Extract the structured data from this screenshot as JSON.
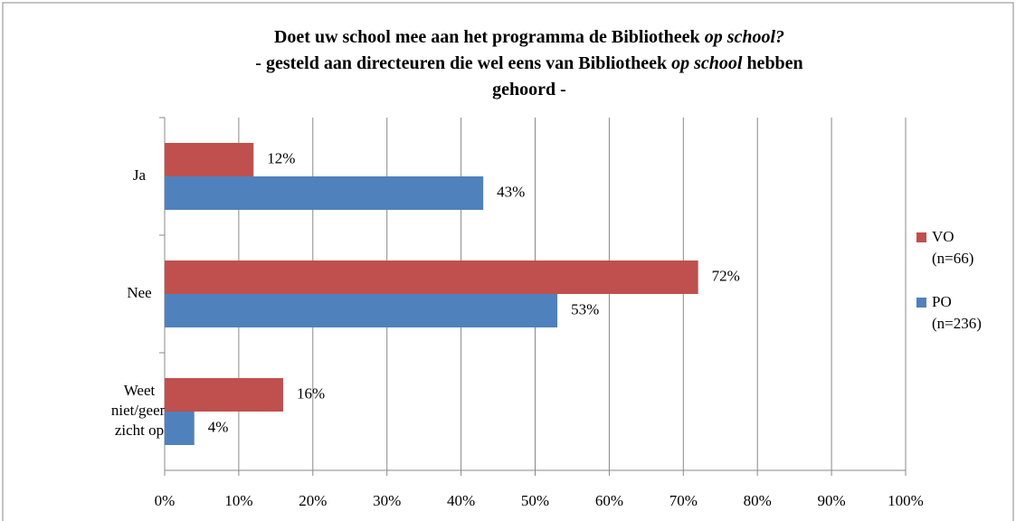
{
  "chart_data": {
    "type": "bar",
    "orientation": "horizontal",
    "title_lines": [
      [
        {
          "text": "Doet uw school mee aan het programma de Bibliotheek "
        },
        {
          "text": "op school?",
          "italic": true
        }
      ],
      [
        {
          "text": "- gesteld aan directeuren die wel eens van Bibliotheek "
        },
        {
          "text": "op school",
          "italic": true
        },
        {
          "text": " hebben"
        }
      ],
      [
        {
          "text": "gehoord -"
        }
      ]
    ],
    "categories": [
      [
        "Ja"
      ],
      [
        "Nee"
      ],
      [
        "Weet",
        "niet/geen",
        "zicht op"
      ]
    ],
    "series": [
      {
        "name": "VO (n=66)",
        "color": "#c0504d",
        "values": [
          12,
          72,
          16
        ],
        "value_labels": [
          "12%",
          "72%",
          "16%"
        ]
      },
      {
        "name": "PO (n=236)",
        "color": "#4f81bd",
        "values": [
          43,
          53,
          4
        ],
        "value_labels": [
          "43%",
          "53%",
          "4%"
        ]
      }
    ],
    "xlim": [
      0,
      100
    ],
    "xticks": [
      {
        "value": 0,
        "label": "0%"
      },
      {
        "value": 10,
        "label": "10%"
      },
      {
        "value": 20,
        "label": "20%"
      },
      {
        "value": 30,
        "label": "30%"
      },
      {
        "value": 40,
        "label": "40%"
      },
      {
        "value": 50,
        "label": "50%"
      },
      {
        "value": 60,
        "label": "60%"
      },
      {
        "value": 70,
        "label": "70%"
      },
      {
        "value": 80,
        "label": "80%"
      },
      {
        "value": 90,
        "label": "90%"
      },
      {
        "value": 100,
        "label": "100%"
      }
    ],
    "grid": true,
    "legend": "right"
  }
}
